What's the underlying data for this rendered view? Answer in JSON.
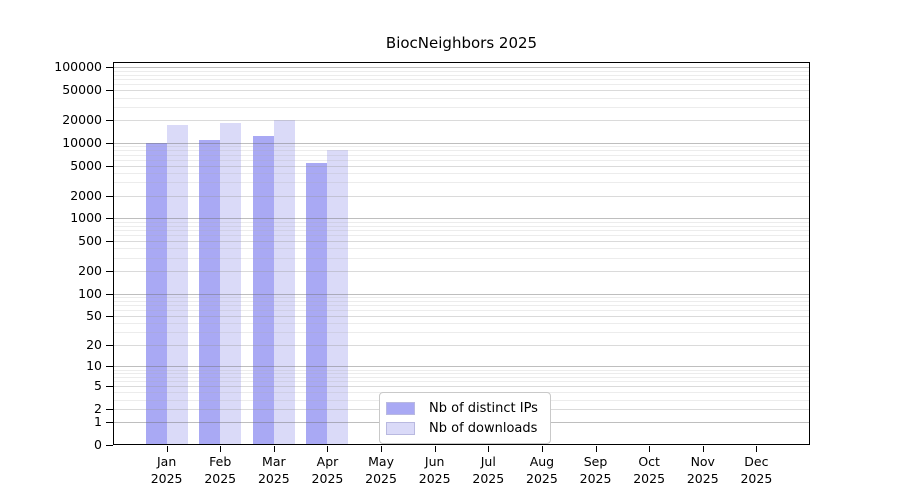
{
  "chart_data": {
    "type": "bar",
    "title": "BiocNeighbors 2025",
    "xlabel": "",
    "ylabel": "",
    "categories": [
      {
        "month": "Jan",
        "year": "2025"
      },
      {
        "month": "Feb",
        "year": "2025"
      },
      {
        "month": "Mar",
        "year": "2025"
      },
      {
        "month": "Apr",
        "year": "2025"
      },
      {
        "month": "May",
        "year": "2025"
      },
      {
        "month": "Jun",
        "year": "2025"
      },
      {
        "month": "Jul",
        "year": "2025"
      },
      {
        "month": "Aug",
        "year": "2025"
      },
      {
        "month": "Sep",
        "year": "2025"
      },
      {
        "month": "Oct",
        "year": "2025"
      },
      {
        "month": "Nov",
        "year": "2025"
      },
      {
        "month": "Dec",
        "year": "2025"
      }
    ],
    "series": [
      {
        "name": "Nb of distinct IPs",
        "color": "#a9a9f4",
        "values": [
          9800,
          10600,
          11900,
          5300,
          null,
          null,
          null,
          null,
          null,
          null,
          null,
          null
        ]
      },
      {
        "name": "Nb of downloads",
        "color": "#dadaf8",
        "values": [
          16800,
          18000,
          19600,
          7900,
          null,
          null,
          null,
          null,
          null,
          null,
          null,
          null
        ]
      }
    ],
    "y_scale": "log10(value+1)",
    "ylim": [
      0,
      100000
    ],
    "y_ticks": [
      0,
      1,
      2,
      5,
      10,
      20,
      50,
      100,
      200,
      500,
      1000,
      2000,
      5000,
      10000,
      20000,
      50000,
      100000
    ],
    "grid": true,
    "legend_position": "inside-bottom-center",
    "colors": {
      "spine": "#000000",
      "grid_major": "rgba(110,110,110,0.45)",
      "grid_labeled": "rgba(150,150,150,0.35)",
      "grid_minor": "rgba(170,170,170,0.22)",
      "text": "#000000",
      "background": "#ffffff"
    }
  }
}
